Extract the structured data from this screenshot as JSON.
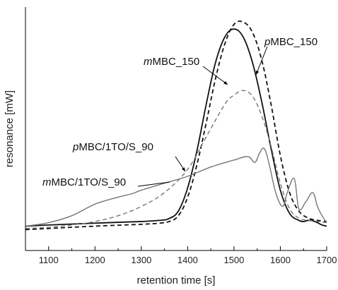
{
  "chart_data": {
    "type": "line",
    "title": "",
    "xlabel": "retention time [s]",
    "ylabel": "resonance [mW]",
    "xlim": [
      1050,
      1700
    ],
    "ylim": [
      -0.05,
      1.0
    ],
    "xticks": [
      1100,
      1200,
      1300,
      1400,
      1500,
      1600,
      1700
    ],
    "yticks": [],
    "grid": false,
    "legend": "none",
    "series": [
      {
        "name": "mMBC_150",
        "style": "solid",
        "color": "#111111",
        "x": [
          1050,
          1100,
          1200,
          1300,
          1340,
          1360,
          1380,
          1400,
          1420,
          1440,
          1460,
          1480,
          1500,
          1520,
          1540,
          1560,
          1580,
          1600,
          1620,
          1640,
          1650,
          1660,
          1670,
          1680,
          1690,
          1700
        ],
        "y": [
          0.055,
          0.06,
          0.068,
          0.075,
          0.08,
          0.088,
          0.12,
          0.22,
          0.38,
          0.58,
          0.76,
          0.87,
          0.905,
          0.87,
          0.76,
          0.59,
          0.39,
          0.21,
          0.11,
          0.08,
          0.075,
          0.08,
          0.078,
          0.07,
          0.06,
          0.055
        ]
      },
      {
        "name": "pMBC_150",
        "style": "dashed",
        "color": "#111111",
        "x": [
          1050,
          1100,
          1200,
          1300,
          1340,
          1360,
          1380,
          1400,
          1420,
          1440,
          1460,
          1480,
          1500,
          1520,
          1540,
          1560,
          1580,
          1600,
          1620,
          1640,
          1660,
          1680,
          1700
        ],
        "y": [
          0.04,
          0.045,
          0.055,
          0.063,
          0.068,
          0.075,
          0.1,
          0.18,
          0.32,
          0.5,
          0.69,
          0.84,
          0.925,
          0.935,
          0.89,
          0.77,
          0.58,
          0.36,
          0.2,
          0.12,
          0.09,
          0.08,
          0.075
        ]
      },
      {
        "name": "pMBC/1TO/S_90",
        "style": "dashed",
        "color": "#777777",
        "x": [
          1050,
          1100,
          1150,
          1200,
          1250,
          1300,
          1350,
          1400,
          1440,
          1480,
          1500,
          1520,
          1540,
          1560,
          1580,
          1600,
          1620,
          1640,
          1660,
          1680,
          1700
        ],
        "y": [
          0.045,
          0.05,
          0.06,
          0.075,
          0.1,
          0.14,
          0.2,
          0.3,
          0.44,
          0.58,
          0.62,
          0.64,
          0.615,
          0.53,
          0.4,
          0.24,
          0.13,
          0.09,
          0.08,
          0.075,
          0.07
        ]
      },
      {
        "name": "mMBC/1TO/S_90",
        "style": "solid",
        "color": "#777777",
        "x": [
          1050,
          1100,
          1150,
          1200,
          1250,
          1280,
          1300,
          1350,
          1400,
          1450,
          1500,
          1530,
          1545,
          1555,
          1565,
          1575,
          1590,
          1605,
          1615,
          1630,
          1640,
          1655,
          1670,
          1680,
          1690,
          1700
        ],
        "y": [
          0.055,
          0.07,
          0.1,
          0.15,
          0.18,
          0.195,
          0.21,
          0.24,
          0.27,
          0.31,
          0.34,
          0.355,
          0.33,
          0.37,
          0.39,
          0.33,
          0.2,
          0.14,
          0.2,
          0.26,
          0.13,
          0.16,
          0.2,
          0.14,
          0.1,
          0.07
        ]
      }
    ],
    "annotations": [
      {
        "text": "mMBC_150",
        "italic_prefix": "m",
        "rest": "MBC_150",
        "target_series": 0
      },
      {
        "text": "pMBC_150",
        "italic_prefix": "p",
        "rest": "MBC_150",
        "target_series": 1
      },
      {
        "text": "pMBC/1TO/S_90",
        "italic_prefix": "p",
        "rest": "MBC/1TO/S_90",
        "target_series": 2
      },
      {
        "text": "mMBC/1TO/S_90",
        "italic_prefix": "m",
        "rest": "MBC/1TO/S_90",
        "target_series": 3
      }
    ]
  }
}
